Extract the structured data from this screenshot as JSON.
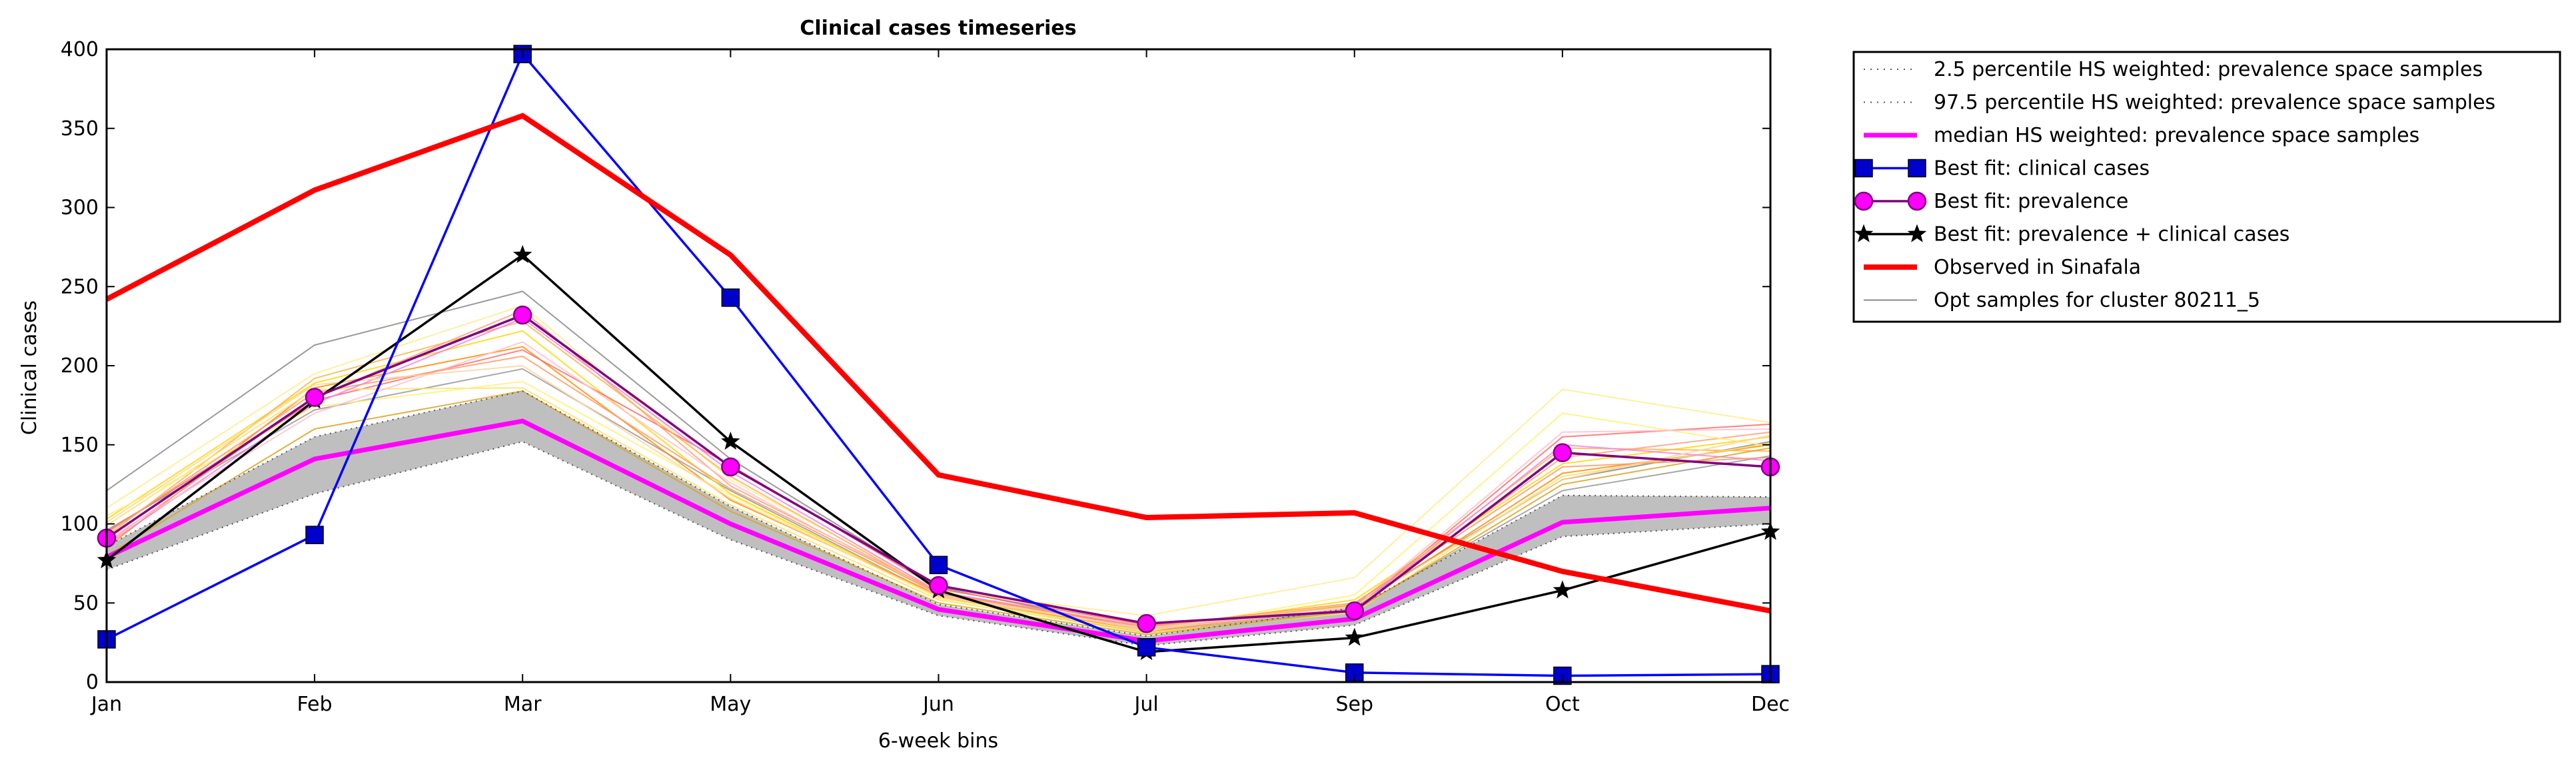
{
  "chart_data": {
    "type": "line",
    "title": "Clinical cases timeseries",
    "xlabel": "6-week bins",
    "ylabel": "Clinical cases",
    "categories": [
      "Jan",
      "Feb",
      "Mar",
      "May",
      "Jun",
      "Jul",
      "Sep",
      "Oct",
      "Dec"
    ],
    "ylim": [
      0,
      400
    ],
    "yticks": [
      0,
      50,
      100,
      150,
      200,
      250,
      300,
      350,
      400
    ],
    "grid": false,
    "legend_position": "outside-top-right",
    "band": {
      "lower": [
        71,
        119,
        152,
        90,
        42,
        23,
        36,
        92,
        100
      ],
      "upper": [
        86,
        155,
        184,
        111,
        49,
        29,
        47,
        118,
        117
      ],
      "fill": "#bfbfbf"
    },
    "series": [
      {
        "name": "2.5 percentile HS weighted: prevalence space samples",
        "style": "dotted",
        "color": "#555555",
        "values": [
          71,
          119,
          152,
          90,
          42,
          23,
          36,
          92,
          100
        ]
      },
      {
        "name": "97.5 percentile HS weighted: prevalence space samples",
        "style": "dotted",
        "color": "#555555",
        "values": [
          86,
          155,
          184,
          111,
          49,
          29,
          47,
          118,
          117
        ]
      },
      {
        "name": "median HS weighted: prevalence space samples",
        "style": "solid-thick",
        "color": "#ff00ff",
        "values": [
          79,
          141,
          165,
          100,
          46,
          26,
          40,
          101,
          110
        ]
      },
      {
        "name": "Best fit: clinical cases",
        "style": "square-markers",
        "color": "#0000ff",
        "marker_fill": "#0000cc",
        "values": [
          27,
          93,
          397,
          243,
          74,
          22,
          6,
          4,
          5
        ]
      },
      {
        "name": "Best fit: prevalence",
        "style": "circle-markers",
        "color": "#800080",
        "marker_fill": "#ff00ff",
        "values": [
          91,
          180,
          232,
          136,
          61,
          37,
          45,
          145,
          136
        ]
      },
      {
        "name": "Best fit: prevalence + clinical cases",
        "style": "star-markers",
        "color": "#000000",
        "values": [
          77,
          178,
          270,
          152,
          58,
          19,
          28,
          58,
          95
        ]
      },
      {
        "name": "Observed in Sinafala",
        "style": "solid-red",
        "color": "#ff0000",
        "values": [
          242,
          311,
          358,
          270,
          131,
          104,
          107,
          70,
          45
        ]
      },
      {
        "name": "Opt samples for cluster 80211_5",
        "style": "thin",
        "color": "#888888",
        "values": [
          121,
          213,
          247,
          141,
          60,
          33,
          49,
          128,
          152
        ]
      }
    ],
    "opt_samples": [
      {
        "color": "#888888",
        "values": [
          121,
          213,
          247,
          141,
          60,
          33,
          49,
          128,
          152
        ]
      },
      {
        "color": "#999999",
        "values": [
          96,
          172,
          198,
          121,
          54,
          31,
          46,
          121,
          143
        ]
      },
      {
        "color": "#ffd700",
        "values": [
          103,
          189,
          222,
          119,
          54,
          33,
          52,
          138,
          155
        ]
      },
      {
        "color": "#ffec8b",
        "values": [
          110,
          195,
          238,
          128,
          58,
          42,
          66,
          185,
          164
        ]
      },
      {
        "color": "#ff8c00",
        "values": [
          85,
          186,
          212,
          115,
          55,
          32,
          47,
          132,
          150
        ]
      },
      {
        "color": "#ff6a6a",
        "values": [
          95,
          178,
          210,
          137,
          59,
          36,
          46,
          155,
          163
        ]
      },
      {
        "color": "#ffa07a",
        "values": [
          88,
          180,
          235,
          124,
          57,
          35,
          48,
          142,
          158
        ]
      },
      {
        "color": "#ffb347",
        "values": [
          92,
          192,
          228,
          130,
          56,
          34,
          49,
          148,
          146
        ]
      },
      {
        "color": "#ffe066",
        "values": [
          99,
          185,
          186,
          112,
          52,
          31,
          44,
          130,
          151
        ]
      },
      {
        "color": "#ee82ee",
        "values": [
          87,
          176,
          230,
          133,
          57,
          34,
          46,
          150,
          140
        ]
      },
      {
        "color": "#daa520",
        "values": [
          80,
          160,
          184,
          108,
          50,
          30,
          45,
          125,
          148
        ]
      },
      {
        "color": "#fff176",
        "values": [
          105,
          174,
          190,
          118,
          53,
          32,
          55,
          170,
          149
        ]
      },
      {
        "color": "#ffc0cb",
        "values": [
          90,
          170,
          215,
          126,
          55,
          33,
          47,
          158,
          160
        ]
      },
      {
        "color": "#ff9966",
        "values": [
          94,
          183,
          206,
          122,
          56,
          35,
          50,
          136,
          142
        ]
      },
      {
        "color": "#ffd39b",
        "values": [
          101,
          188,
          200,
          116,
          54,
          34,
          48,
          128,
          156
        ]
      }
    ]
  }
}
